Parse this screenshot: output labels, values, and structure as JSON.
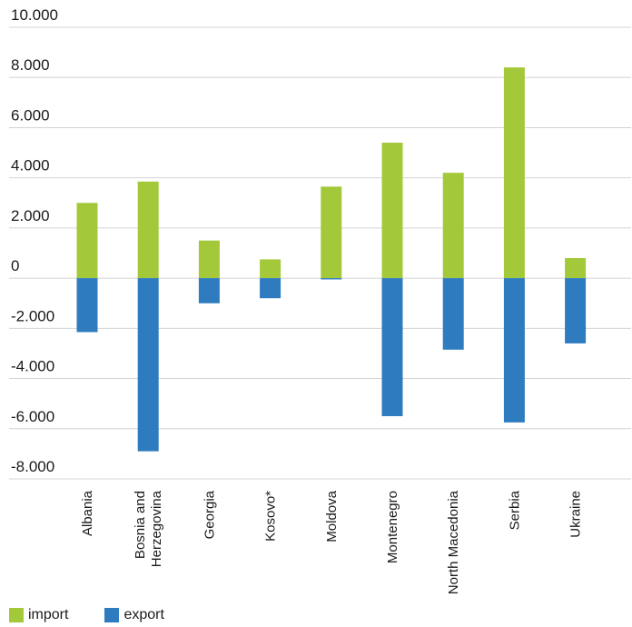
{
  "chart_data": {
    "type": "bar",
    "stacked": true,
    "categories": [
      "Albania",
      "Bosnia and Herzegovina",
      "Georgia",
      "Kosovo*",
      "Moldova",
      "Montenegro",
      "North Macedonia",
      "Serbia",
      "Ukraine"
    ],
    "category_lines": [
      [
        "Albania"
      ],
      [
        "Bosnia and",
        "Herzegovina"
      ],
      [
        "Georgia"
      ],
      [
        "Kosovo*"
      ],
      [
        "Moldova"
      ],
      [
        "Montenegro"
      ],
      [
        "North Macedonia"
      ],
      [
        "Serbia"
      ],
      [
        "Ukraine"
      ]
    ],
    "series": [
      {
        "name": "import",
        "color": "#a3c93a",
        "values": [
          3000,
          3850,
          1500,
          750,
          3650,
          5400,
          4200,
          8400,
          800
        ]
      },
      {
        "name": "export",
        "color": "#2e7cbf",
        "values": [
          -2150,
          -6900,
          -1000,
          -800,
          -50,
          -5500,
          -2850,
          -5750,
          -2600
        ]
      }
    ],
    "ylim": [
      -8000,
      10000
    ],
    "yticks": [
      10000,
      8000,
      6000,
      4000,
      2000,
      0,
      -2000,
      -4000,
      -6000,
      -8000
    ],
    "ytick_labels": [
      "10.000",
      "8.000",
      "6.000",
      "4.000",
      "2.000",
      "0",
      "-2.000",
      "-4.000",
      "-6.000",
      "-8.000"
    ],
    "grid": true,
    "legend_position": "bottom-left"
  },
  "legend": {
    "import_label": "import",
    "export_label": "export",
    "import_color": "#a3c93a",
    "export_color": "#2e7cbf"
  }
}
